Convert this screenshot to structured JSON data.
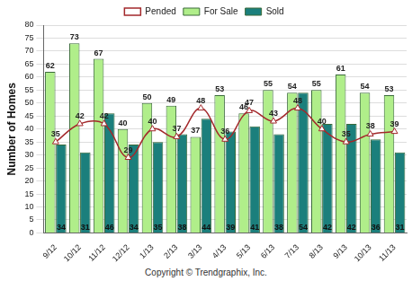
{
  "chart_data": {
    "type": "bar",
    "y_label": "Number of Homes",
    "annotation": "Copyright © Trendgraphix, Inc.",
    "categories": [
      "9/12",
      "10/12",
      "11/12",
      "12/12",
      "1/13",
      "2/13",
      "3/13",
      "4/13",
      "5/13",
      "6/13",
      "7/13",
      "8/13",
      "9/13",
      "10/13",
      "11/13"
    ],
    "series": [
      {
        "name": "For Sale",
        "type": "bar",
        "color": "#b0ee8a",
        "values": [
          62,
          73,
          67,
          40,
          50,
          49,
          37,
          53,
          46,
          55,
          54,
          55,
          61,
          54,
          53
        ]
      },
      {
        "name": "Sold",
        "type": "bar",
        "color": "#1b7f7c",
        "values": [
          34,
          31,
          46,
          34,
          35,
          38,
          44,
          39,
          41,
          38,
          54,
          42,
          42,
          36,
          31
        ]
      },
      {
        "name": "Pended",
        "type": "line",
        "color": "#a3282b",
        "marker": "triangle",
        "values": [
          35,
          42,
          42,
          29,
          40,
          37,
          48,
          36,
          47,
          43,
          48,
          40,
          35,
          38,
          39
        ]
      }
    ],
    "ylim": [
      0,
      80
    ],
    "yticks": [
      0,
      5,
      10,
      15,
      20,
      25,
      30,
      35,
      40,
      45,
      50,
      55,
      60,
      65,
      70,
      75,
      80
    ],
    "grid": true,
    "legend": "top",
    "data_labels": true
  }
}
